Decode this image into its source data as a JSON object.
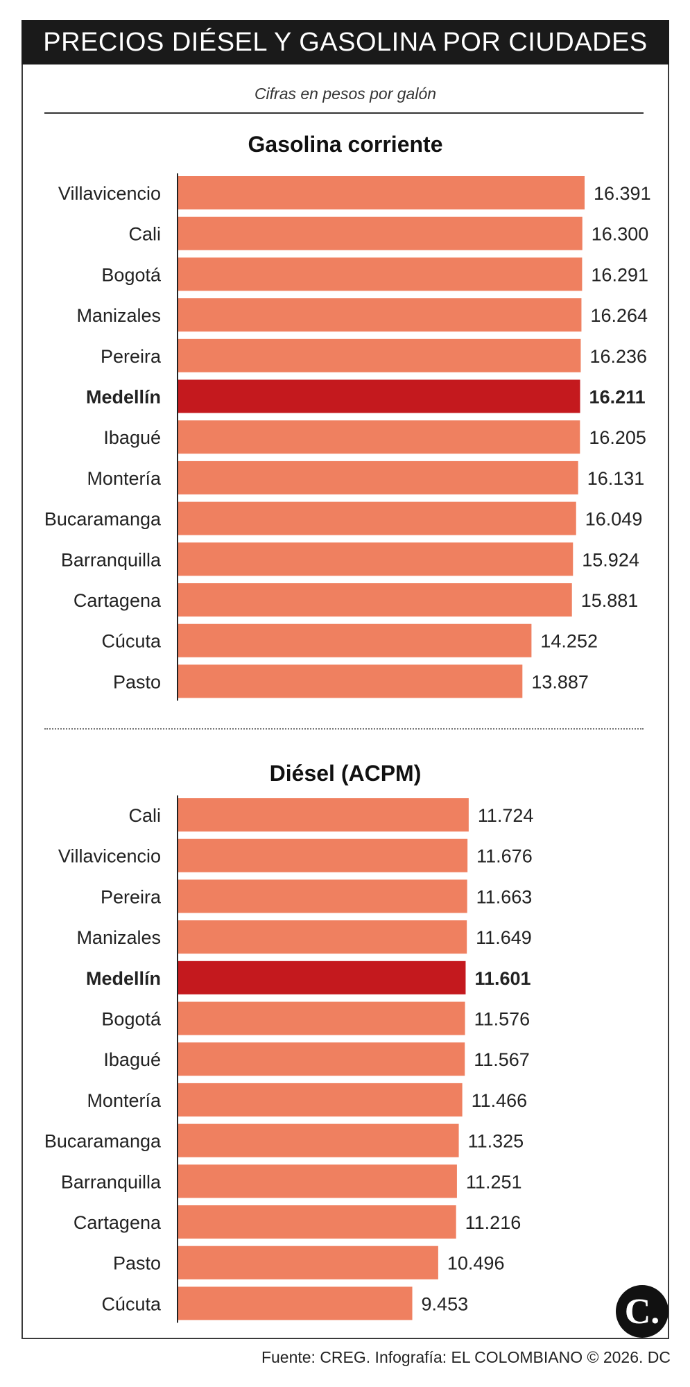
{
  "header": {
    "title": "PRECIOS DIÉSEL Y GASOLINA POR CIUDADES"
  },
  "subtitle": "Cifras en pesos por galón",
  "colors": {
    "bar": "#ef8060",
    "highlight": "#c4191e",
    "axis": "#222222"
  },
  "highlight_city": "Medellín",
  "chart_data": [
    {
      "type": "bar",
      "orientation": "horizontal",
      "title": "Gasolina corriente",
      "categories": [
        "Villavicencio",
        "Cali",
        "Bogotá",
        "Manizales",
        "Pereira",
        "Medellín",
        "Ibagué",
        "Montería",
        "Bucaramanga",
        "Barranquilla",
        "Cartagena",
        "Cúcuta",
        "Pasto"
      ],
      "values": [
        16391,
        16300,
        16291,
        16264,
        16236,
        16211,
        16205,
        16131,
        16049,
        15924,
        15881,
        14252,
        13887
      ],
      "value_labels": [
        "16.391",
        "16.300",
        "16.291",
        "16.264",
        "16.236",
        "16.211",
        "16.205",
        "16.131",
        "16.049",
        "15.924",
        "15.881",
        "14.252",
        "13.887"
      ],
      "xlim": [
        0,
        16391
      ]
    },
    {
      "type": "bar",
      "orientation": "horizontal",
      "title": "Diésel (ACPM)",
      "categories": [
        "Cali",
        "Villavicencio",
        "Pereira",
        "Manizales",
        "Medellín",
        "Bogotá",
        "Ibagué",
        "Montería",
        "Bucaramanga",
        "Barranquilla",
        "Cartagena",
        "Pasto",
        "Cúcuta"
      ],
      "values": [
        11724,
        11676,
        11663,
        11649,
        11601,
        11576,
        11567,
        11466,
        11325,
        11251,
        11216,
        10496,
        9453
      ],
      "value_labels": [
        "11.724",
        "11.676",
        "11.663",
        "11.649",
        "11.601",
        "11.576",
        "11.567",
        "11.466",
        "11.325",
        "11.251",
        "11.216",
        "10.496",
        "9.453"
      ],
      "xlim": [
        0,
        16391
      ]
    }
  ],
  "footer": {
    "source": "Fuente: CREG. Infografía: EL COLOMBIANO © 2026. DC"
  },
  "logo": {
    "text": "C."
  }
}
